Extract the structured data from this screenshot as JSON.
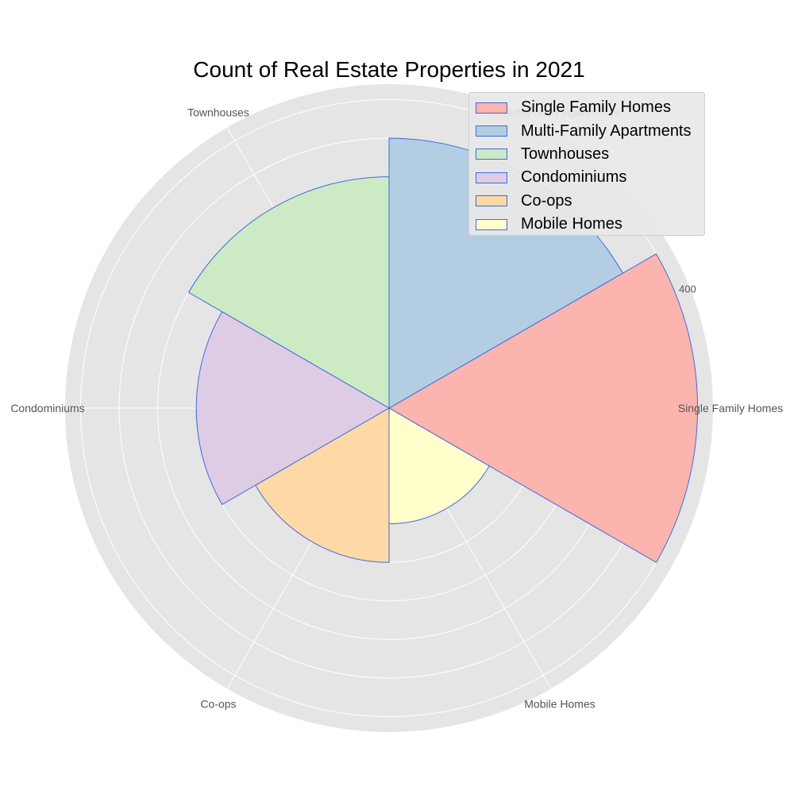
{
  "chart_data": {
    "type": "polar-bar",
    "title": "Count of Real Estate Properties in 2021",
    "categories": [
      "Single Family Homes",
      "Multi-Family Apartments",
      "Townhouses",
      "Condominiums",
      "Co-ops",
      "Mobile Homes"
    ],
    "values": [
      400,
      350,
      300,
      250,
      200,
      150
    ],
    "colors": [
      "#fbb4ae",
      "#b3cde3",
      "#ccebc5",
      "#decbe4",
      "#fed9a6",
      "#ffffcc"
    ],
    "edge_color": "#4169e1",
    "radial_ticks": [
      "400"
    ],
    "rlim": [
      0,
      420
    ],
    "grid": true,
    "legend_position": "upper-right"
  }
}
